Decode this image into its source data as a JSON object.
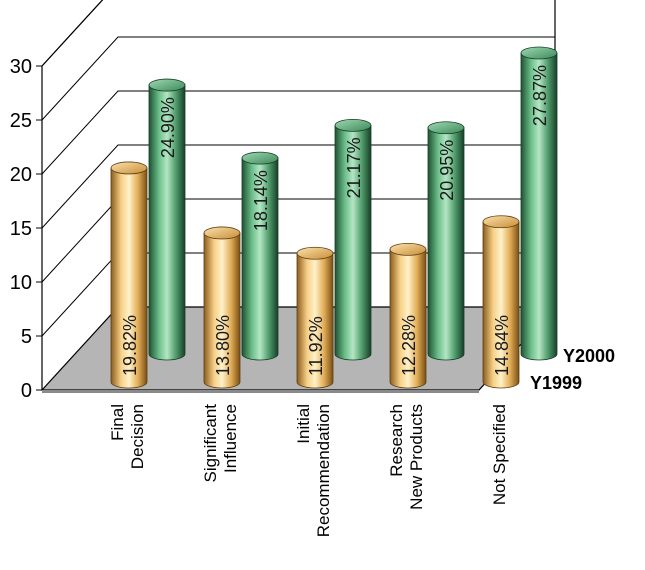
{
  "chart_data": {
    "type": "bar",
    "three_d": true,
    "categories": [
      [
        "Final",
        "Decision"
      ],
      [
        "Significant",
        "Influence"
      ],
      [
        "Initial",
        "Recommendation"
      ],
      [
        "Research",
        "New Products"
      ],
      [
        "Not Specified"
      ]
    ],
    "series": [
      {
        "name": "Y1999",
        "values": [
          19.82,
          13.8,
          11.92,
          12.28,
          14.84
        ],
        "labels": [
          "19.82%",
          "13.80%",
          "11.92%",
          "12.28%",
          "14.84%"
        ],
        "color": "#f2c478"
      },
      {
        "name": "Y2000",
        "values": [
          24.9,
          18.14,
          21.17,
          20.95,
          27.87
        ],
        "labels": [
          "24.90%",
          "18.14%",
          "21.17%",
          "20.95%",
          "27.87%"
        ],
        "color": "#5fae7c"
      }
    ],
    "y_ticks": [
      0,
      5,
      10,
      15,
      20,
      25,
      30
    ],
    "ylim": [
      0,
      30
    ],
    "grid": true,
    "floor_color": "#b5b5b5",
    "title": "",
    "xlabel": "",
    "ylabel": ""
  }
}
